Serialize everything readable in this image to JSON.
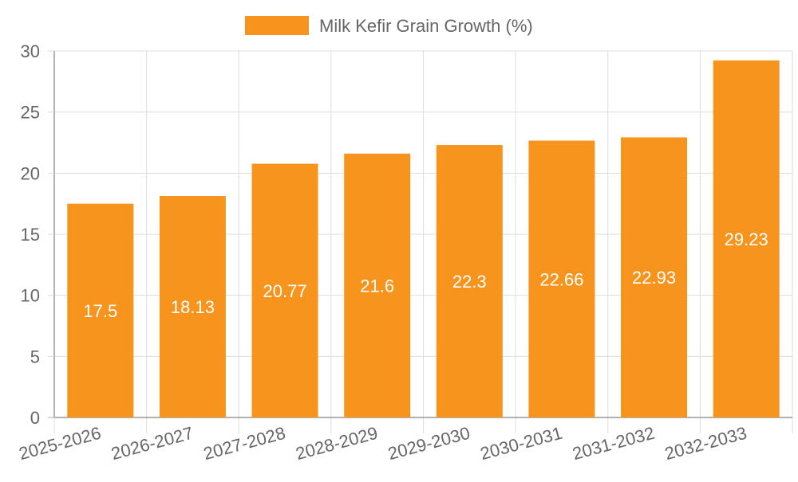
{
  "chart_data": {
    "type": "bar",
    "title": "",
    "xlabel": "",
    "ylabel": "",
    "legend": {
      "label": "Milk Kefir Grain Growth (%)",
      "position": "top-center"
    },
    "categories": [
      "2025-2026",
      "2026-2027",
      "2027-2028",
      "2028-2029",
      "2029-2030",
      "2030-2031",
      "2031-2032",
      "2032-2033"
    ],
    "values": [
      17.5,
      18.13,
      20.77,
      21.6,
      22.3,
      22.66,
      22.93,
      29.23
    ],
    "value_labels": [
      "17.5",
      "18.13",
      "20.77",
      "21.6",
      "22.3",
      "22.66",
      "22.93",
      "29.23"
    ],
    "ylim": [
      0,
      30
    ],
    "yticks": [
      0,
      5,
      10,
      15,
      20,
      25,
      30
    ],
    "ytick_labels": [
      "0",
      "5",
      "10",
      "15",
      "20",
      "25",
      "30"
    ],
    "grid": true,
    "colors": {
      "bar": "#f7941d",
      "grid": "#dddddd",
      "axis": "#999999",
      "tick_text": "#666666",
      "value_text": "#ffffff"
    }
  }
}
